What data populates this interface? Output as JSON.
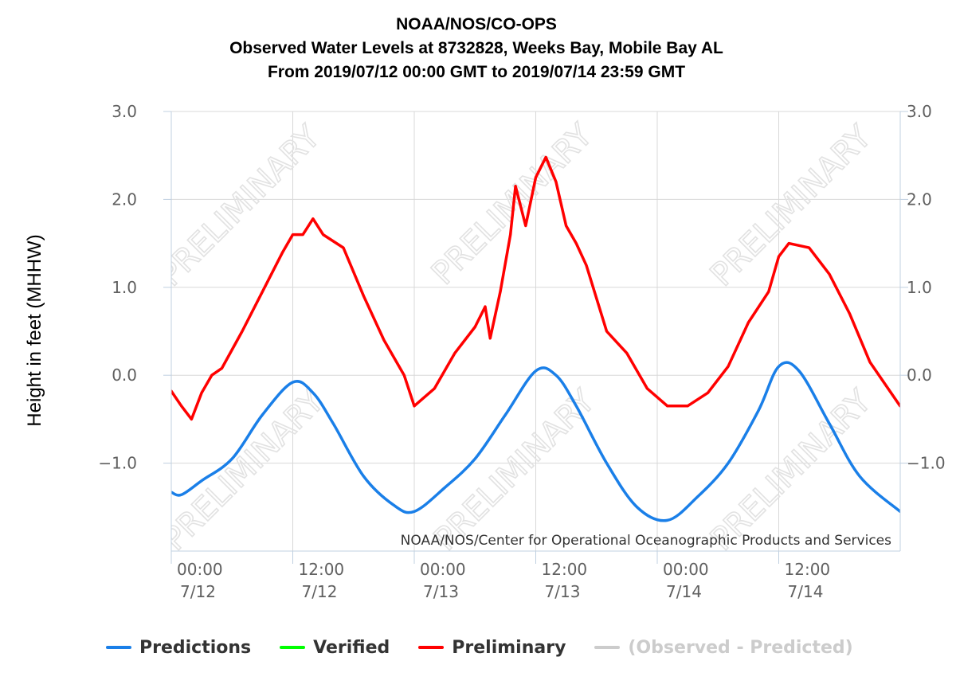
{
  "title_lines": [
    "NOAA/NOS/CO-OPS",
    "Observed Water Levels at 8732828, Weeks Bay, Mobile Bay AL",
    "From 2019/07/12 00:00 GMT to 2019/07/14 23:59 GMT"
  ],
  "credit": "NOAA/NOS/Center for Operational Oceanographic Products and Services",
  "watermark": "PRELIMINARY",
  "legend": [
    {
      "label": "Predictions",
      "color": "#1a7fe8",
      "enabled": true
    },
    {
      "label": "Verified",
      "color": "#00ff00",
      "enabled": true
    },
    {
      "label": "Preliminary",
      "color": "#ff0000",
      "enabled": true
    },
    {
      "label": "(Observed - Predicted)",
      "color": "#cccccc",
      "enabled": false
    }
  ],
  "chart_data": {
    "type": "line",
    "ylabel": "Height in feet (MHHW)",
    "xlabel": "",
    "ylim": [
      -2.0,
      3.0
    ],
    "xlim": [
      "2019-07-12 00:00",
      "2019-07-14 23:59"
    ],
    "grid": true,
    "legend_position": "bottom",
    "y_ticks": [
      "3.0",
      "2.0",
      "1.0",
      "0.0",
      "−1.0"
    ],
    "x_ticks": [
      {
        "x": "2019-07-12 00:00",
        "time": "00:00",
        "date": "7/12"
      },
      {
        "x": "2019-07-12 12:00",
        "time": "12:00",
        "date": "7/12"
      },
      {
        "x": "2019-07-13 00:00",
        "time": "00:00",
        "date": "7/13"
      },
      {
        "x": "2019-07-13 12:00",
        "time": "12:00",
        "date": "7/13"
      },
      {
        "x": "2019-07-14 00:00",
        "time": "00:00",
        "date": "7/14"
      },
      {
        "x": "2019-07-14 12:00",
        "time": "12:00",
        "date": "7/14"
      }
    ],
    "series": [
      {
        "name": "Predictions",
        "color": "#1a7fe8",
        "x": [
          "2019-07-12 00:00",
          "2019-07-12 01:00",
          "2019-07-12 03:00",
          "2019-07-12 06:00",
          "2019-07-12 09:00",
          "2019-07-12 12:00",
          "2019-07-12 14:00",
          "2019-07-12 16:00",
          "2019-07-12 19:00",
          "2019-07-12 22:00",
          "2019-07-13 00:00",
          "2019-07-13 03:00",
          "2019-07-13 06:00",
          "2019-07-13 09:00",
          "2019-07-13 12:00",
          "2019-07-13 14:00",
          "2019-07-13 16:00",
          "2019-07-13 19:00",
          "2019-07-13 22:00",
          "2019-07-14 01:00",
          "2019-07-14 04:00",
          "2019-07-14 07:00",
          "2019-07-14 10:00",
          "2019-07-14 12:00",
          "2019-07-14 14:00",
          "2019-07-14 17:00",
          "2019-07-14 20:00",
          "2019-07-14 23:59"
        ],
        "y": [
          -1.33,
          -1.36,
          -1.2,
          -0.95,
          -0.45,
          -0.08,
          -0.2,
          -0.55,
          -1.15,
          -1.48,
          -1.55,
          -1.28,
          -0.95,
          -0.45,
          0.05,
          0.0,
          -0.35,
          -1.0,
          -1.5,
          -1.65,
          -1.38,
          -1.0,
          -0.4,
          0.1,
          0.05,
          -0.55,
          -1.15,
          -1.55
        ]
      },
      {
        "name": "Preliminary",
        "color": "#ff0000",
        "x": [
          "2019-07-12 00:00",
          "2019-07-12 01:00",
          "2019-07-12 02:00",
          "2019-07-12 03:00",
          "2019-07-12 04:00",
          "2019-07-12 05:00",
          "2019-07-12 07:00",
          "2019-07-12 09:00",
          "2019-07-12 11:00",
          "2019-07-12 12:00",
          "2019-07-12 13:00",
          "2019-07-12 14:00",
          "2019-07-12 15:00",
          "2019-07-12 17:00",
          "2019-07-12 19:00",
          "2019-07-12 21:00",
          "2019-07-12 23:00",
          "2019-07-13 00:00",
          "2019-07-13 02:00",
          "2019-07-13 04:00",
          "2019-07-13 06:00",
          "2019-07-13 07:00",
          "2019-07-13 07:30",
          "2019-07-13 08:30",
          "2019-07-13 09:30",
          "2019-07-13 10:00",
          "2019-07-13 11:00",
          "2019-07-13 12:00",
          "2019-07-13 13:00",
          "2019-07-13 14:00",
          "2019-07-13 15:00",
          "2019-07-13 16:00",
          "2019-07-13 17:00",
          "2019-07-13 19:00",
          "2019-07-13 21:00",
          "2019-07-13 23:00",
          "2019-07-14 01:00",
          "2019-07-14 03:00",
          "2019-07-14 05:00",
          "2019-07-14 07:00",
          "2019-07-14 09:00",
          "2019-07-14 11:00",
          "2019-07-14 12:00",
          "2019-07-14 13:00",
          "2019-07-14 15:00",
          "2019-07-14 17:00",
          "2019-07-14 19:00",
          "2019-07-14 21:00",
          "2019-07-14 23:59"
        ],
        "y": [
          -0.18,
          -0.35,
          -0.5,
          -0.2,
          0.0,
          0.08,
          0.5,
          0.95,
          1.4,
          1.6,
          1.6,
          1.78,
          1.6,
          1.45,
          0.9,
          0.4,
          0.0,
          -0.35,
          -0.15,
          0.25,
          0.55,
          0.78,
          0.42,
          0.95,
          1.6,
          2.15,
          1.7,
          2.25,
          2.48,
          2.2,
          1.7,
          1.5,
          1.25,
          0.5,
          0.25,
          -0.15,
          -0.35,
          -0.35,
          -0.2,
          0.1,
          0.6,
          0.95,
          1.35,
          1.5,
          1.45,
          1.15,
          0.7,
          0.15,
          -0.35
        ]
      }
    ]
  }
}
